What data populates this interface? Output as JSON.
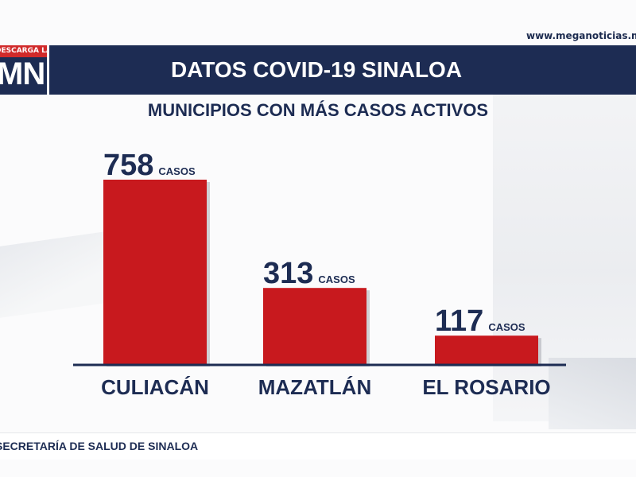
{
  "header": {
    "url": "www.meganoticias.mx/cu",
    "logo_banner": "DESCARGA LA APP",
    "logo_text": "MN",
    "title": "DATOS COVID-19 SINALOA"
  },
  "footer": {
    "source": "SECRETARÍA DE SALUD DE SINALOA"
  },
  "colors": {
    "navy": "#1d2c53",
    "bar": "#c8191e",
    "accent_red": "#d12a2a"
  },
  "chart_data": {
    "type": "bar",
    "title": "MUNICIPIOS CON MÁS CASOS ACTIVOS",
    "categories": [
      "CULIACÁN",
      "MAZATLÁN",
      "EL ROSARIO"
    ],
    "values": [
      758,
      313,
      117
    ],
    "value_suffix": "CASOS",
    "grid": false,
    "legend": "none"
  }
}
